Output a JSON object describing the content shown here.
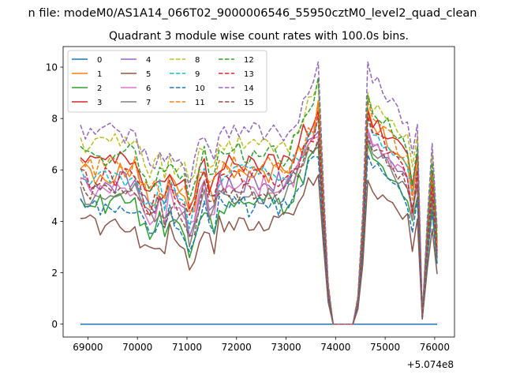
{
  "figure": {
    "suptitle": "n file: modeM0/AS1A14_066T02_9000006546_55950cztM0_level2_quad_clean",
    "title": "Quadrant 3 module wise count rates with 100.0s bins.",
    "offset_label": "+5.074e8"
  },
  "chart_data": {
    "type": "line",
    "title": "Quadrant 3 module wise count rates with 100.0s bins.",
    "xlabel": "",
    "ylabel": "",
    "x_offset": 507400000,
    "xlim": [
      68500,
      76400
    ],
    "ylim": [
      -0.5,
      10.8
    ],
    "xticks": [
      69000,
      70000,
      71000,
      72000,
      73000,
      74000,
      75000,
      76000
    ],
    "yticks": [
      0,
      2,
      4,
      6,
      8,
      10
    ],
    "legend_position": "top-left",
    "legend_columns": 4,
    "x": [
      68850,
      68950,
      69050,
      69150,
      69250,
      69350,
      69450,
      69550,
      69650,
      69750,
      69850,
      69950,
      70050,
      70150,
      70250,
      70350,
      70450,
      70550,
      70650,
      70750,
      70850,
      70950,
      71050,
      71150,
      71250,
      71350,
      71450,
      71550,
      71650,
      71750,
      71850,
      71950,
      72050,
      72150,
      72250,
      72350,
      72450,
      72550,
      72650,
      72750,
      72850,
      72950,
      73050,
      73150,
      73250,
      73350,
      73450,
      73550,
      73650,
      73750,
      73850,
      73950,
      74050,
      74150,
      74250,
      74350,
      74450,
      74550,
      74650,
      74750,
      74850,
      74950,
      75050,
      75150,
      75250,
      75350,
      75450,
      75550,
      75650,
      75750,
      75850,
      75950,
      76050
    ],
    "series": [
      {
        "name": "0",
        "color": "#1f77b4",
        "dash": "solid",
        "profile": "flat",
        "values": [
          0,
          0,
          0,
          0,
          0,
          0,
          0,
          0,
          0,
          0,
          0,
          0,
          0,
          0,
          0,
          0,
          0,
          0,
          0,
          0,
          0,
          0,
          0,
          0,
          0,
          0,
          0,
          0,
          0,
          0,
          0,
          0,
          0,
          0,
          0,
          0,
          0,
          0,
          0,
          0,
          0,
          0,
          0,
          0,
          0,
          0,
          0,
          0,
          0,
          0,
          0,
          0,
          0,
          0,
          0,
          0,
          0,
          0,
          0,
          0,
          0,
          0,
          0,
          0,
          0,
          0,
          0,
          0,
          0,
          0,
          0,
          0,
          0
        ]
      },
      {
        "name": "1",
        "color": "#ff7f0e",
        "dash": "solid",
        "profile": "base",
        "base": 5.9,
        "peak1": 8.7,
        "peak2": 8.4
      },
      {
        "name": "2",
        "color": "#2ca02c",
        "dash": "solid",
        "profile": "base",
        "base": 4.7,
        "peak1": 6.9,
        "peak2": 7.0
      },
      {
        "name": "3",
        "color": "#d62728",
        "dash": "solid",
        "profile": "base",
        "base": 6.3,
        "peak1": 8.3,
        "peak2": 8.3
      },
      {
        "name": "4",
        "color": "#9467bd",
        "dash": "solid",
        "profile": "base",
        "base": 5.5,
        "peak1": 7.5,
        "peak2": 7.5
      },
      {
        "name": "5",
        "color": "#8c564b",
        "dash": "solid",
        "profile": "base",
        "base": 3.9,
        "peak1": 5.8,
        "peak2": 5.6
      },
      {
        "name": "6",
        "color": "#e377c2",
        "dash": "solid",
        "profile": "base",
        "base": 5.4,
        "peak1": 7.3,
        "peak2": 7.6
      },
      {
        "name": "7",
        "color": "#7f7f7f",
        "dash": "solid",
        "profile": "base",
        "base": 5.1,
        "peak1": 7.1,
        "peak2": 7.2
      },
      {
        "name": "8",
        "color": "#bcbd22",
        "dash": "dashed",
        "profile": "base",
        "base": 7.0,
        "peak1": 9.4,
        "peak2": 9.0
      },
      {
        "name": "9",
        "color": "#17becf",
        "dash": "dashed",
        "profile": "base",
        "base": 5.8,
        "peak1": 7.9,
        "peak2": 8.0
      },
      {
        "name": "10",
        "color": "#1f77b4",
        "dash": "dashed",
        "profile": "base",
        "base": 4.6,
        "peak1": 6.5,
        "peak2": 6.6
      },
      {
        "name": "11",
        "color": "#ff7f0e",
        "dash": "dashed",
        "profile": "base",
        "base": 6.1,
        "peak1": 8.6,
        "peak2": 8.7
      },
      {
        "name": "12",
        "color": "#2ca02c",
        "dash": "dashed",
        "profile": "base",
        "base": 6.6,
        "peak1": 9.6,
        "peak2": 8.9
      },
      {
        "name": "13",
        "color": "#d62728",
        "dash": "dashed",
        "profile": "base",
        "base": 5.7,
        "peak1": 8.2,
        "peak2": 8.1
      },
      {
        "name": "14",
        "color": "#9467bd",
        "dash": "dashed",
        "profile": "base",
        "base": 7.4,
        "peak1": 10.2,
        "peak2": 10.2
      },
      {
        "name": "15",
        "color": "#8c564b",
        "dash": "dashed",
        "profile": "base",
        "base": 5.2,
        "peak1": 7.2,
        "peak2": 7.3
      }
    ]
  }
}
